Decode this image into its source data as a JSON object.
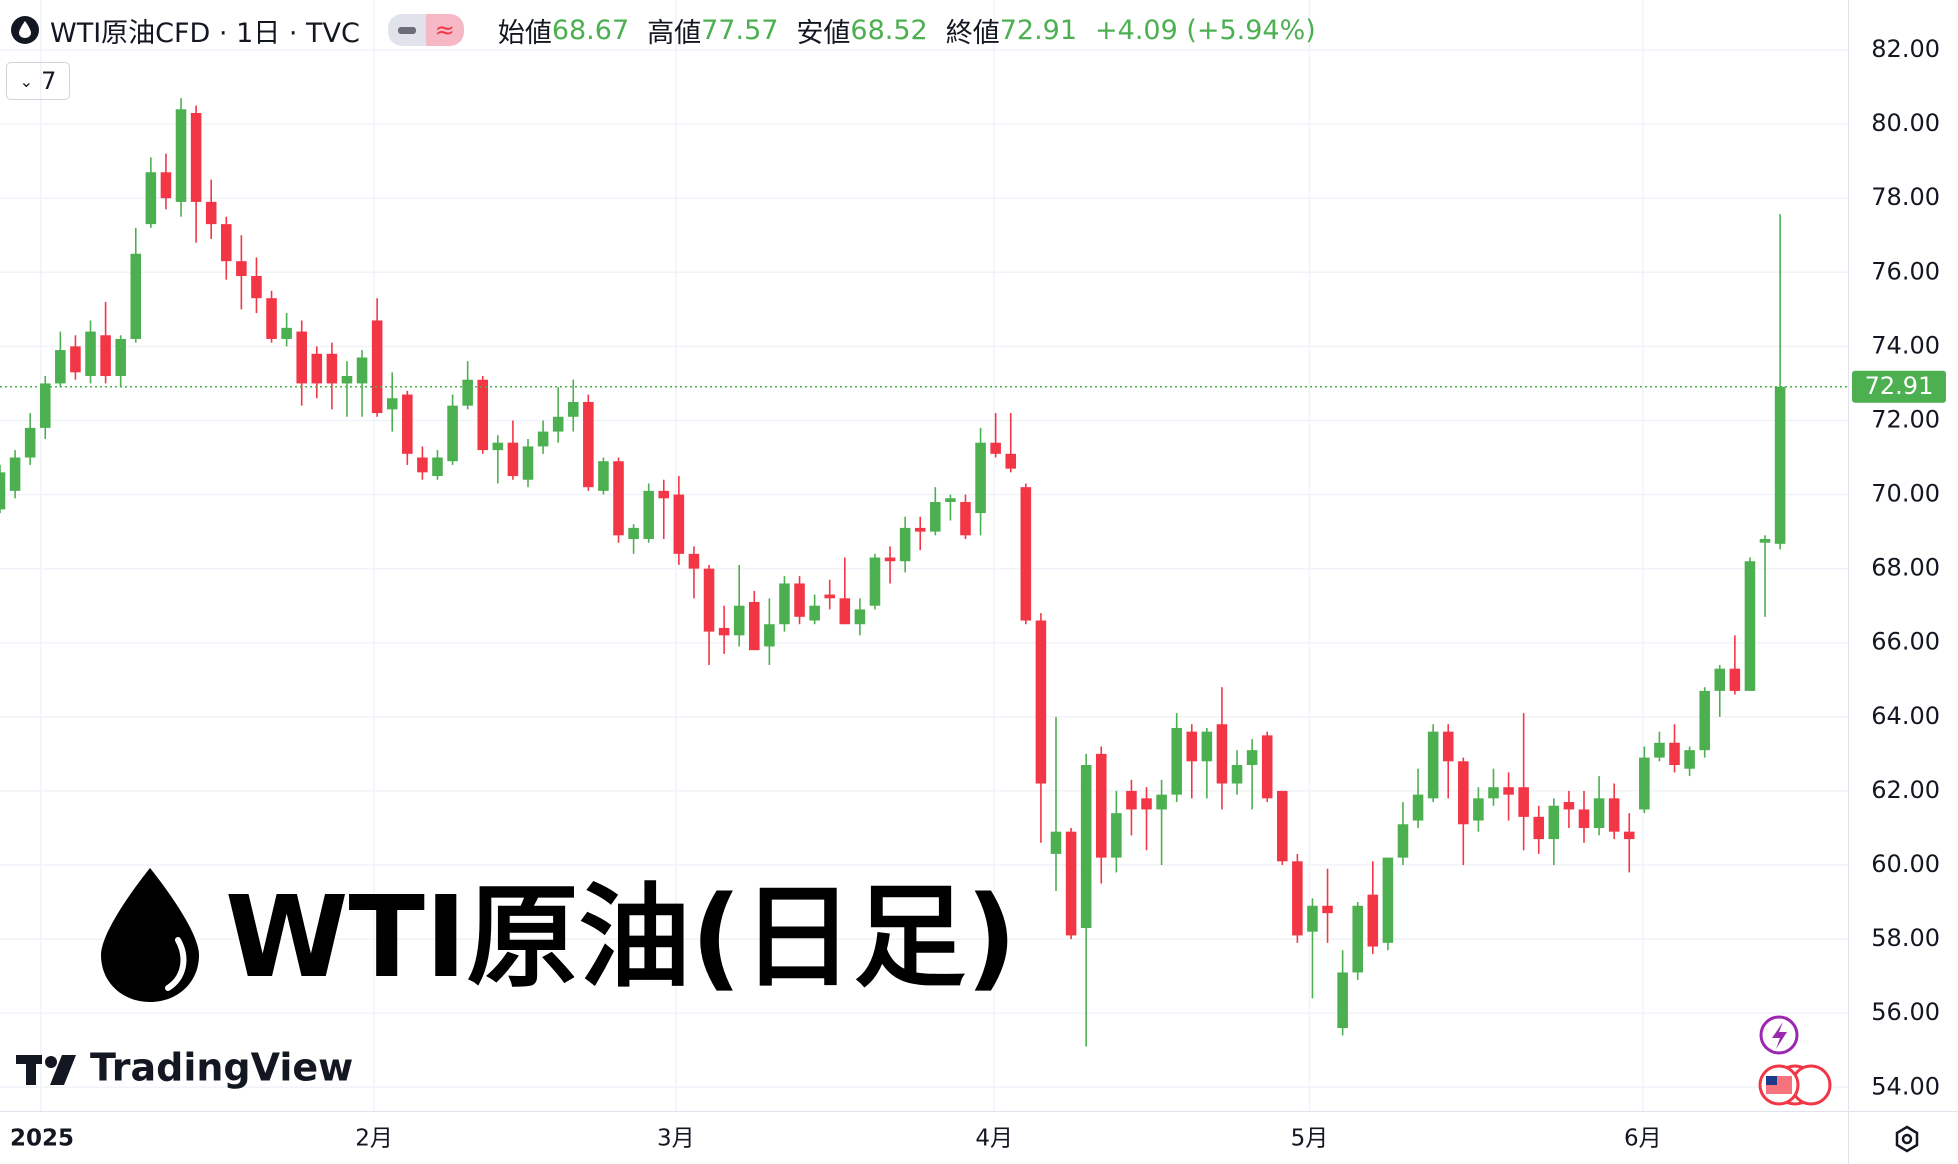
{
  "header": {
    "title": "WTI原油CFD · 1日 · TVC",
    "open_label": "始値",
    "open": 68.67,
    "high_label": "高値",
    "high": 77.57,
    "low_label": "安値",
    "low": 68.52,
    "close_label": "終値",
    "close": 72.91,
    "change": "+4.09 (+5.94%)",
    "indicators": "7"
  },
  "watermark": {
    "title": "WTI原油(日足)",
    "brand": "TradingView"
  },
  "chart_data": {
    "type": "candlestick",
    "up_color": "#4caf50",
    "down_color": "#f23645",
    "categories": [
      null,
      null,
      null,
      null,
      null,
      null,
      null,
      null,
      null,
      null,
      null,
      null,
      null,
      null,
      null,
      null,
      null,
      null,
      null,
      null,
      null,
      null,
      null,
      null,
      null,
      null,
      null,
      null,
      null,
      null,
      null,
      null,
      null,
      null,
      null,
      null,
      null,
      null,
      null,
      null,
      null,
      null,
      null,
      null,
      null,
      null,
      null,
      null,
      null,
      null,
      null,
      null,
      null,
      null,
      null,
      null,
      null,
      null,
      null,
      null,
      null,
      null,
      null,
      null,
      null,
      null,
      null,
      null,
      null,
      null,
      null,
      null,
      null,
      null,
      null,
      null,
      null,
      null,
      null,
      null,
      null,
      null,
      null,
      null,
      null,
      null,
      null,
      null,
      null,
      null,
      null,
      null,
      null,
      null,
      null,
      null,
      null,
      null,
      null,
      null,
      null,
      null,
      null,
      null,
      null,
      null,
      null,
      null,
      null,
      null,
      null,
      null,
      null,
      null,
      null,
      null,
      null,
      null,
      null
    ],
    "open": [
      69.6,
      70.1,
      71.0,
      71.8,
      73.0,
      74.0,
      73.2,
      74.3,
      73.2,
      74.2,
      77.3,
      78.7,
      77.9,
      80.3,
      77.9,
      77.3,
      76.3,
      75.9,
      75.3,
      74.2,
      74.4,
      73.8,
      73.8,
      73.0,
      73.0,
      74.7,
      72.3,
      72.7,
      71.0,
      70.5,
      70.9,
      72.4,
      73.1,
      71.2,
      71.4,
      70.4,
      71.3,
      71.7,
      72.1,
      72.5,
      70.1,
      70.9,
      68.8,
      68.8,
      70.1,
      70.0,
      68.4,
      68.0,
      66.4,
      66.2,
      67.1,
      65.9,
      66.5,
      67.6,
      66.6,
      67.3,
      67.2,
      66.5,
      67.0,
      68.3,
      68.2,
      69.1,
      69.0,
      69.8,
      69.8,
      69.5,
      71.4,
      71.1,
      70.2,
      66.6,
      60.3,
      60.9,
      58.3,
      63.0,
      60.2,
      62.0,
      61.8,
      61.5,
      61.9,
      63.6,
      62.8,
      63.8,
      62.2,
      62.7,
      63.5,
      62.0,
      60.1,
      58.2,
      58.9,
      55.6,
      57.1,
      59.2,
      57.9,
      60.2,
      61.2,
      61.8,
      63.6,
      62.8,
      61.2,
      61.8,
      62.1,
      62.1,
      61.3,
      60.7,
      61.7,
      61.5,
      61.0,
      61.8,
      60.9,
      61.5,
      62.9,
      63.3,
      62.6,
      63.1,
      64.7,
      65.3,
      64.7,
      68.7,
      68.67
    ],
    "high": [
      70.8,
      71.2,
      72.2,
      73.2,
      74.4,
      74.3,
      74.7,
      75.2,
      74.3,
      77.2,
      79.1,
      79.2,
      80.7,
      80.5,
      78.5,
      77.5,
      77.0,
      76.4,
      75.5,
      74.9,
      74.7,
      74.0,
      74.1,
      73.6,
      73.9,
      75.3,
      73.3,
      72.8,
      71.3,
      71.2,
      72.7,
      73.6,
      73.2,
      71.6,
      72.0,
      71.5,
      72.0,
      72.9,
      73.1,
      72.7,
      71.0,
      71.0,
      69.2,
      70.3,
      70.4,
      70.5,
      68.6,
      68.1,
      67.0,
      68.1,
      67.4,
      67.2,
      67.8,
      67.8,
      67.3,
      67.7,
      68.3,
      67.2,
      68.4,
      68.6,
      69.4,
      69.4,
      70.2,
      70.0,
      70.0,
      71.8,
      72.2,
      72.2,
      70.3,
      66.8,
      64.0,
      61.0,
      63.0,
      63.2,
      62.0,
      62.3,
      62.1,
      62.3,
      64.1,
      63.8,
      63.7,
      64.8,
      63.1,
      63.4,
      63.6,
      62.0,
      60.3,
      59.1,
      59.9,
      57.7,
      59.0,
      60.1,
      60.2,
      61.7,
      62.6,
      63.8,
      63.8,
      62.9,
      62.1,
      62.6,
      62.5,
      64.1,
      61.6,
      61.8,
      62.0,
      62.0,
      62.4,
      62.2,
      61.4,
      63.2,
      63.6,
      63.8,
      63.2,
      64.8,
      65.4,
      66.2,
      68.3,
      68.9,
      77.57
    ],
    "low": [
      69.5,
      69.9,
      70.8,
      71.5,
      72.9,
      73.1,
      73.0,
      73.0,
      72.9,
      74.1,
      77.2,
      77.7,
      77.5,
      76.8,
      76.9,
      75.8,
      75.0,
      74.9,
      74.1,
      74.0,
      72.4,
      72.6,
      72.3,
      72.1,
      72.1,
      72.1,
      71.7,
      70.8,
      70.4,
      70.4,
      70.8,
      72.3,
      71.1,
      70.3,
      70.4,
      70.2,
      71.1,
      71.4,
      71.7,
      70.1,
      70.0,
      68.7,
      68.4,
      68.7,
      68.8,
      68.1,
      67.2,
      65.4,
      65.7,
      65.9,
      65.8,
      65.4,
      66.3,
      66.5,
      66.5,
      66.9,
      66.5,
      66.2,
      66.9,
      67.6,
      67.9,
      68.5,
      68.9,
      69.3,
      68.8,
      68.9,
      71.0,
      70.6,
      66.5,
      60.6,
      59.3,
      58.0,
      55.1,
      59.5,
      59.8,
      60.8,
      60.4,
      60.0,
      61.7,
      61.8,
      61.8,
      61.5,
      61.9,
      61.5,
      61.7,
      60.0,
      57.9,
      56.4,
      57.9,
      55.4,
      56.9,
      57.6,
      57.7,
      60.0,
      61.0,
      61.7,
      61.8,
      60.0,
      60.9,
      61.6,
      61.2,
      60.4,
      60.3,
      60.0,
      61.0,
      60.6,
      60.8,
      60.7,
      59.8,
      61.4,
      62.8,
      62.5,
      62.4,
      62.9,
      64.0,
      64.6,
      64.7,
      66.7,
      68.52
    ],
    "close": [
      70.6,
      71.0,
      71.8,
      73.0,
      73.9,
      73.3,
      74.4,
      73.2,
      74.2,
      76.5,
      78.7,
      78.0,
      80.4,
      77.9,
      77.3,
      76.3,
      75.9,
      75.3,
      74.2,
      74.5,
      73.0,
      73.0,
      73.0,
      73.2,
      73.7,
      72.2,
      72.6,
      71.1,
      70.6,
      71.0,
      72.4,
      73.1,
      71.2,
      71.4,
      70.5,
      71.3,
      71.7,
      72.1,
      72.5,
      70.2,
      70.9,
      68.9,
      69.1,
      70.1,
      69.9,
      68.4,
      68.0,
      66.3,
      66.2,
      67.0,
      65.8,
      66.5,
      67.6,
      66.7,
      67.0,
      67.2,
      66.5,
      66.9,
      68.3,
      68.2,
      69.1,
      69.0,
      69.8,
      69.9,
      68.9,
      71.4,
      71.1,
      70.7,
      66.6,
      62.2,
      60.9,
      58.1,
      62.7,
      60.2,
      61.4,
      61.5,
      61.5,
      61.9,
      63.7,
      62.8,
      63.6,
      62.2,
      62.7,
      63.1,
      61.8,
      60.1,
      58.1,
      58.9,
      58.7,
      57.1,
      58.9,
      57.8,
      60.2,
      61.1,
      61.9,
      63.6,
      62.8,
      61.1,
      61.8,
      62.1,
      61.9,
      61.3,
      60.7,
      61.6,
      61.5,
      61.0,
      61.8,
      60.9,
      60.7,
      62.9,
      63.3,
      62.7,
      63.1,
      64.7,
      65.3,
      64.7,
      68.2,
      68.8,
      72.91
    ],
    "last_price": {
      "value": 72.91,
      "label": "72.91"
    },
    "xlim": [
      0,
      122.5
    ],
    "xticks": [
      {
        "value": 2.7,
        "label": "2025"
      },
      {
        "value": 24.8,
        "label": "2月"
      },
      {
        "value": 44.8,
        "label": "3月"
      },
      {
        "value": 65.9,
        "label": "4月"
      },
      {
        "value": 86.8,
        "label": "5月"
      },
      {
        "value": 108.9,
        "label": "6月"
      }
    ],
    "ylim": [
      53.36,
      83.35
    ],
    "yticks": [
      {
        "value": 54,
        "label": "54.00"
      },
      {
        "value": 56,
        "label": "56.00"
      },
      {
        "value": 58,
        "label": "58.00"
      },
      {
        "value": 60,
        "label": "60.00"
      },
      {
        "value": 62,
        "label": "62.00"
      },
      {
        "value": 64,
        "label": "64.00"
      },
      {
        "value": 66,
        "label": "66.00"
      },
      {
        "value": 68,
        "label": "68.00"
      },
      {
        "value": 70,
        "label": "70.00"
      },
      {
        "value": 72,
        "label": "72.00"
      },
      {
        "value": 74,
        "label": "74.00"
      },
      {
        "value": 76,
        "label": "76.00"
      },
      {
        "value": 78,
        "label": "78.00"
      },
      {
        "value": 80,
        "label": "80.00"
      },
      {
        "value": 82,
        "label": "82.00"
      }
    ],
    "grid": true
  }
}
